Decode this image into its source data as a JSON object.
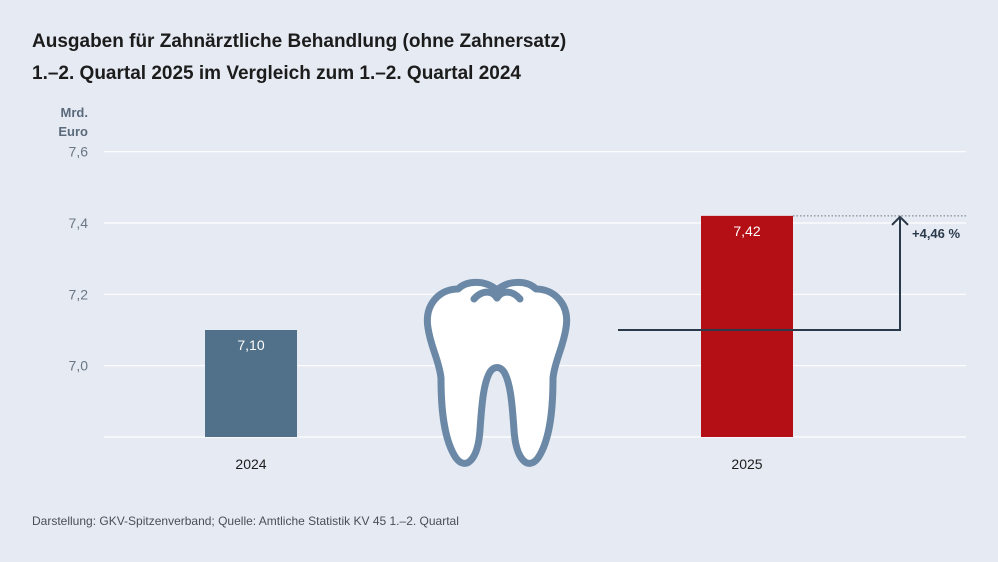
{
  "title_line1": "Ausgaben für Zahnärztliche Behandlung (ohne Zahnersatz)",
  "title_line2": "1.–2. Quartal 2025 im Vergleich zum 1.–2. Quartal 2024",
  "unit_line1": "Mrd.",
  "unit_line2": "Euro",
  "source": "Darstellung: GKV-Spitzenverband; Quelle: Amtliche Statistik KV 45 1.–2. Quartal",
  "chart_data": {
    "type": "bar",
    "categories": [
      "2024",
      "2025"
    ],
    "values": [
      7.1,
      7.42
    ],
    "value_labels": [
      "7,10",
      "7,42"
    ],
    "colors": [
      "#517089",
      "#b30f14"
    ],
    "ytick_values": [
      7.0,
      7.2,
      7.4,
      7.6
    ],
    "ytick_labels": [
      "7,0",
      "7,2",
      "7,4",
      "7,6"
    ],
    "ylim": [
      6.8,
      7.6
    ],
    "ylabel": "Mrd. Euro",
    "grid": true,
    "annotation": "+4,46 %",
    "icon": "tooth-icon",
    "icon_color": "#6b89a6"
  }
}
